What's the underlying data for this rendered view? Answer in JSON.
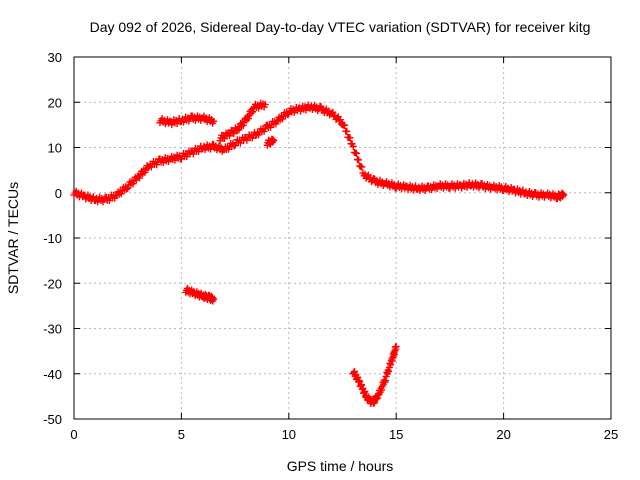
{
  "chart_data": {
    "type": "scatter",
    "title": "Day 092 of 2026, Sidereal Day-to-day VTEC variation (SDTVAR) for receiver kitg",
    "xlabel": "GPS time / hours",
    "ylabel": "SDTVAR / TECUs",
    "xlim": [
      0,
      25
    ],
    "ylim": [
      -50,
      30
    ],
    "xticks": [
      "0",
      "5",
      "10",
      "15",
      "20",
      "25"
    ],
    "yticks": [
      "30",
      "20",
      "10",
      "0",
      "-10",
      "-20",
      "-30",
      "-40",
      "-50"
    ],
    "grid": true,
    "marker": "+",
    "color": "#ff0000",
    "series": [
      {
        "name": "main-arc",
        "points": [
          [
            0.0,
            0.0
          ],
          [
            0.5,
            -0.8
          ],
          [
            1.0,
            -1.5
          ],
          [
            1.5,
            -1.5
          ],
          [
            2.0,
            -0.5
          ],
          [
            2.5,
            1.5
          ],
          [
            3.0,
            3.5
          ],
          [
            3.5,
            6.0
          ],
          [
            4.0,
            7.0
          ],
          [
            4.5,
            7.5
          ],
          [
            5.0,
            8.0
          ],
          [
            5.5,
            9.0
          ],
          [
            6.0,
            10.0
          ],
          [
            6.5,
            10.2
          ],
          [
            7.0,
            9.5
          ],
          [
            7.5,
            11.0
          ],
          [
            8.0,
            12.0
          ],
          [
            8.5,
            13.0
          ],
          [
            9.0,
            14.5
          ],
          [
            9.5,
            16.0
          ],
          [
            10.0,
            18.0
          ],
          [
            10.5,
            18.5
          ],
          [
            11.0,
            19.0
          ],
          [
            11.5,
            18.5
          ],
          [
            12.0,
            17.5
          ],
          [
            12.5,
            15.5
          ],
          [
            13.0,
            10.0
          ],
          [
            13.5,
            4.0
          ],
          [
            14.0,
            2.5
          ],
          [
            14.5,
            2.0
          ],
          [
            15.0,
            1.5
          ],
          [
            15.5,
            1.2
          ],
          [
            16.0,
            1.0
          ],
          [
            16.5,
            1.0
          ],
          [
            17.0,
            1.5
          ],
          [
            17.5,
            1.5
          ],
          [
            18.0,
            1.5
          ],
          [
            18.5,
            1.8
          ],
          [
            19.0,
            1.5
          ],
          [
            19.5,
            1.2
          ],
          [
            20.0,
            1.0
          ],
          [
            20.5,
            0.5
          ],
          [
            21.0,
            0.0
          ],
          [
            21.5,
            -0.5
          ],
          [
            22.0,
            -0.5
          ],
          [
            22.5,
            -0.8
          ],
          [
            22.8,
            -0.5
          ]
        ]
      },
      {
        "name": "arc-upper-5",
        "points": [
          [
            4.0,
            16.0
          ],
          [
            4.5,
            15.5
          ],
          [
            5.0,
            16.0
          ],
          [
            5.5,
            16.5
          ],
          [
            6.0,
            16.5
          ],
          [
            6.5,
            15.8
          ]
        ]
      },
      {
        "name": "arc-upper-8",
        "points": [
          [
            6.8,
            12.0
          ],
          [
            7.2,
            13.0
          ],
          [
            7.6,
            14.0
          ],
          [
            8.0,
            16.0
          ],
          [
            8.4,
            19.0
          ],
          [
            8.9,
            19.5
          ]
        ]
      },
      {
        "name": "arc-side-9",
        "points": [
          [
            9.0,
            11.0
          ],
          [
            9.3,
            11.5
          ]
        ]
      },
      {
        "name": "arc-negative-5",
        "points": [
          [
            5.2,
            -21.5
          ],
          [
            5.6,
            -22.2
          ],
          [
            6.0,
            -22.8
          ],
          [
            6.3,
            -23.2
          ],
          [
            6.5,
            -23.5
          ]
        ]
      },
      {
        "name": "arc-v-14",
        "points": [
          [
            13.0,
            -39.5
          ],
          [
            13.3,
            -42.0
          ],
          [
            13.6,
            -45.0
          ],
          [
            13.9,
            -46.5
          ],
          [
            14.2,
            -44.5
          ],
          [
            14.5,
            -41.0
          ],
          [
            14.8,
            -37.0
          ],
          [
            15.0,
            -34.0
          ]
        ]
      }
    ]
  }
}
